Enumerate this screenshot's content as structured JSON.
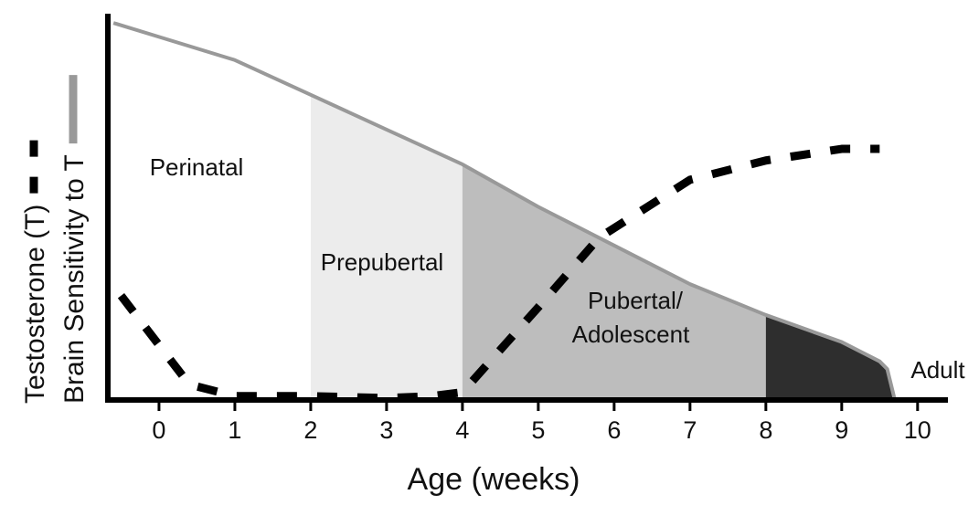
{
  "chart_data": {
    "type": "line",
    "x_label": "Age (weeks)",
    "xlim": [
      -0.65,
      10.4
    ],
    "xticks": [
      0,
      1,
      2,
      3,
      4,
      5,
      6,
      7,
      8,
      9,
      10
    ],
    "ylim": [
      0,
      100
    ],
    "regions": [
      {
        "label": [
          "Perinatal"
        ],
        "start": -0.65,
        "end": 2,
        "color": "#ffffff"
      },
      {
        "label": [
          "Prepubertal"
        ],
        "start": 2,
        "end": 4,
        "color": "#ececec"
      },
      {
        "label": [
          "Pubertal/",
          "Adolescent"
        ],
        "start": 4,
        "end": 8,
        "color": "#bdbdbd"
      },
      {
        "label": [
          "Adult"
        ],
        "start": 8,
        "end": 10.4,
        "color": "#2e2e2e"
      }
    ],
    "series": [
      {
        "name": "Testosterone (T)",
        "color": "#000000",
        "style": "dashed",
        "x": [
          -0.5,
          0.4,
          1,
          2,
          3,
          3.6,
          4,
          5,
          5.8,
          7,
          8,
          9,
          9.5
        ],
        "values": [
          27,
          4,
          1,
          1,
          0.5,
          1,
          2,
          24,
          42,
          57,
          62,
          65,
          65
        ]
      },
      {
        "name": "Brain Sensitivity to T",
        "color": "#999999",
        "style": "solid",
        "x": [
          -0.6,
          0,
          1,
          2,
          3,
          4,
          5,
          6,
          7,
          8,
          9,
          9.5,
          9.6,
          9.7
        ],
        "values": [
          97.6,
          94,
          88,
          79,
          70,
          61,
          50,
          40,
          30,
          22,
          15,
          10,
          8,
          0
        ]
      }
    ]
  }
}
